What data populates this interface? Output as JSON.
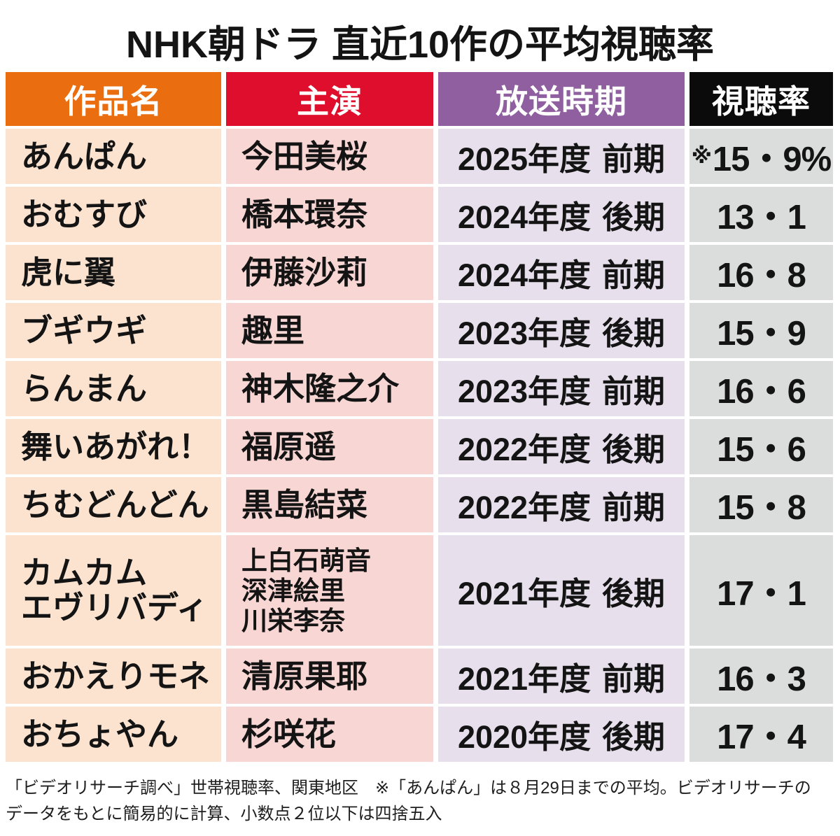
{
  "chart_data": {
    "type": "table",
    "title": "NHK朝ドラ 直近10作の平均視聴率",
    "columns": [
      "作品名",
      "主演",
      "放送時期",
      "視聴率"
    ],
    "rows": [
      {
        "drama_lines": [
          "あんぱん"
        ],
        "cast_lines": [
          "今田美桜"
        ],
        "period_year": "2025年度",
        "period_term": "前期",
        "rating_mark": "※",
        "rating": "15・9%"
      },
      {
        "drama_lines": [
          "おむすび"
        ],
        "cast_lines": [
          "橋本環奈"
        ],
        "period_year": "2024年度",
        "period_term": "後期",
        "rating": "13・1"
      },
      {
        "drama_lines": [
          "虎に翼"
        ],
        "cast_lines": [
          "伊藤沙莉"
        ],
        "period_year": "2024年度",
        "period_term": "前期",
        "rating": "16・8"
      },
      {
        "drama_lines": [
          "ブギウギ"
        ],
        "cast_lines": [
          "趣里"
        ],
        "period_year": "2023年度",
        "period_term": "後期",
        "rating": "15・9"
      },
      {
        "drama_lines": [
          "らんまん"
        ],
        "cast_lines": [
          "神木隆之介"
        ],
        "period_year": "2023年度",
        "period_term": "前期",
        "rating": "16・6"
      },
      {
        "drama_lines": [
          "舞いあがれ！"
        ],
        "cast_lines": [
          "福原遥"
        ],
        "period_year": "2022年度",
        "period_term": "後期",
        "rating": "15・6"
      },
      {
        "drama_lines": [
          "ちむどんどん"
        ],
        "cast_lines": [
          "黒島結菜"
        ],
        "period_year": "2022年度",
        "period_term": "前期",
        "rating": "15・8"
      },
      {
        "drama_lines": [
          "カムカム",
          "エヴリバディ"
        ],
        "cast_lines": [
          "上白石萌音",
          "深津絵里",
          "川栄李奈"
        ],
        "period_year": "2021年度",
        "period_term": "後期",
        "rating": "17・1"
      },
      {
        "drama_lines": [
          "おかえりモネ"
        ],
        "cast_lines": [
          "清原果耶"
        ],
        "period_year": "2021年度",
        "period_term": "前期",
        "rating": "16・3"
      },
      {
        "drama_lines": [
          "おちょやん"
        ],
        "cast_lines": [
          "杉咲花"
        ],
        "period_year": "2020年度",
        "period_term": "後期",
        "rating": "17・4"
      }
    ]
  },
  "footnote": {
    "lines": [
      "「ビデオリサーチ調べ」世帯視聴率、関東地区　※「あんぱん」は８月29日までの平均。ビデオリサーチの",
      "データをもとに簡易的に計算、小数点２位以下は四捨五入"
    ]
  },
  "colors": {
    "header_backgrounds": [
      "#EA6E10",
      "#DF0E2C",
      "#8F5F9F",
      "#0B0B0B"
    ],
    "cell_backgrounds": [
      "#FBE3D0",
      "#F8D6D3",
      "#E7E0EC",
      "#DBDCDC"
    ],
    "header_text": "#FFFFFF",
    "body_text": "#141414"
  }
}
